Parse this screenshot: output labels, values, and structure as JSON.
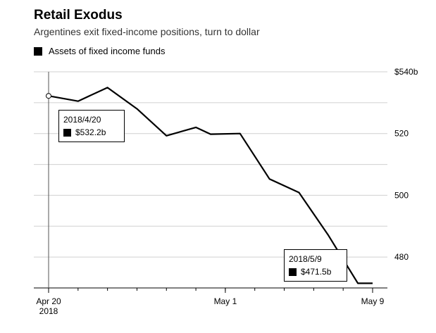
{
  "chart_data": {
    "type": "line",
    "title": "Retail Exodus",
    "subtitle": "Argentines exit fixed-income positions, turn to dollar",
    "legend": "Assets of fixed income funds",
    "ylim": [
      470,
      540
    ],
    "yticks": [
      {
        "value": 540,
        "label": "$540b"
      },
      {
        "value": 520,
        "label": "520"
      },
      {
        "value": 500,
        "label": "500"
      },
      {
        "value": 480,
        "label": "480"
      }
    ],
    "xticks": [
      {
        "index": 0,
        "label": "Apr 20",
        "sublabel": "2018"
      },
      {
        "index": 6,
        "label": "May 1",
        "sublabel": ""
      },
      {
        "index": 11,
        "label": "May 9",
        "sublabel": ""
      }
    ],
    "series": [
      {
        "name": "Assets of fixed income funds",
        "x": [
          "2018-04-20",
          "2018-04-23",
          "2018-04-24",
          "2018-04-25",
          "2018-04-26",
          "2018-04-27",
          "2018-04-30",
          "2018-05-02",
          "2018-05-03",
          "2018-05-04",
          "2018-05-07",
          "2018-05-08",
          "2018-05-09"
        ],
        "index": [
          0,
          1,
          2,
          3,
          4,
          5,
          5.5,
          6.5,
          7.5,
          8.5,
          9.5,
          10.5,
          11
        ],
        "values": [
          532.2,
          530.5,
          534.9,
          528.0,
          519.3,
          522.0,
          519.8,
          520.0,
          505.3,
          500.9,
          487.0,
          471.5,
          471.5
        ]
      }
    ],
    "annotations": [
      {
        "date": "2018/4/20",
        "value": "$532.2b"
      },
      {
        "date": "2018/5/9",
        "value": "$471.5b"
      }
    ]
  }
}
